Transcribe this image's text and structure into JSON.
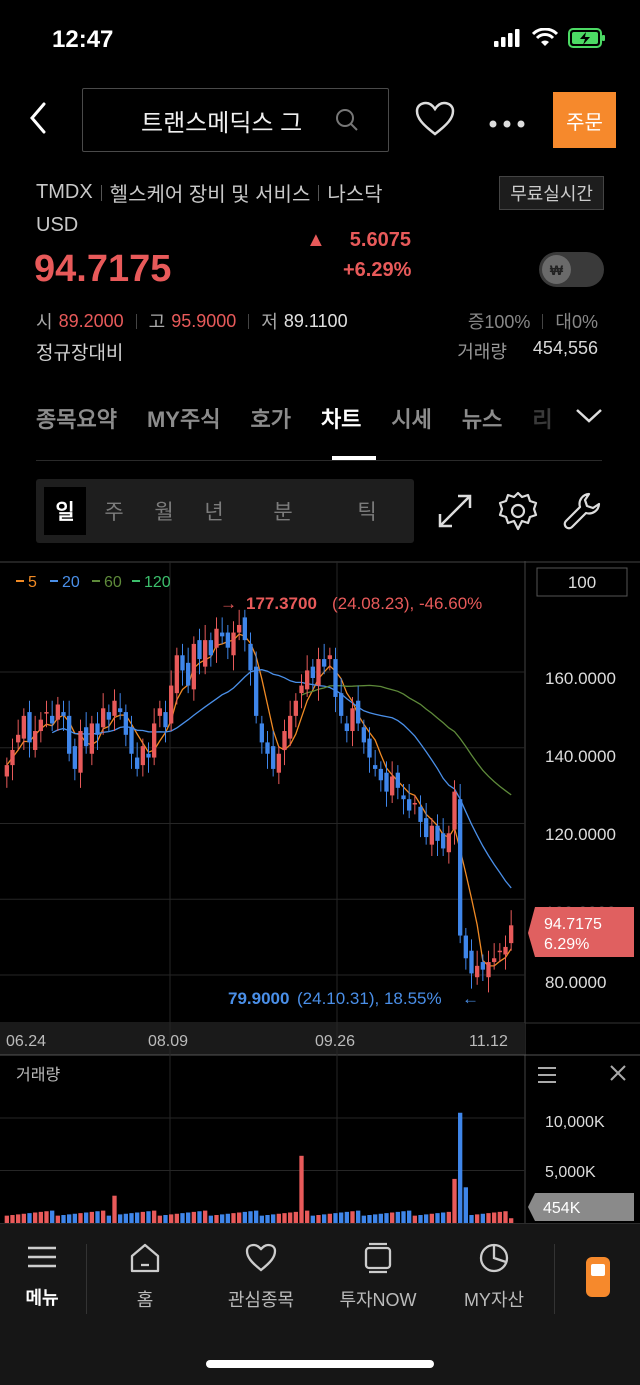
{
  "status_bar": {
    "time": "12:47"
  },
  "header": {
    "search_text": "트랜스메딕스 그",
    "order_label": "주문"
  },
  "stock": {
    "ticker": "TMDX",
    "sector": "헬스케어 장비 및 서비스",
    "market": "나스닥",
    "realtime_badge": "무료실시간",
    "currency": "USD",
    "price": "94.7175",
    "change": "5.6075",
    "change_pct": "+6.29%",
    "won_symbol": "₩",
    "open_label": "시",
    "open": "89.2000",
    "high_label": "고",
    "high": "95.9000",
    "low_label": "저",
    "low": "89.1100",
    "vol_rate": "증100%",
    "prev_rate": "대0%",
    "base_label": "정규장대비",
    "volume_label": "거래량",
    "volume": "454,556"
  },
  "tabs": [
    "종목요약",
    "MY주식",
    "호가",
    "차트",
    "시세",
    "뉴스",
    "리"
  ],
  "active_tab": "차트",
  "periods": [
    "일",
    "주",
    "월",
    "년",
    "분",
    "틱"
  ],
  "chart": {
    "zoom_box": "100",
    "ma_legend": [
      {
        "label": "5",
        "color": "#f08a24"
      },
      {
        "label": "20",
        "color": "#4a8fe8"
      },
      {
        "label": "60",
        "color": "#5e8a3a"
      },
      {
        "label": "120",
        "color": "#3cbf6c"
      }
    ],
    "high_annotation": {
      "value": "177.3700",
      "detail": "(24.08.23), -46.60%"
    },
    "low_annotation": {
      "value": "79.9000",
      "detail": "(24.10.31), 18.55%"
    },
    "y_axis": [
      "160.0000",
      "140.0000",
      "120.0000",
      "100.0000",
      "80.0000"
    ],
    "x_axis": [
      "06.24",
      "08.09",
      "09.26",
      "11.12"
    ],
    "current_tag": {
      "price": "94.7175",
      "pct": "6.29%"
    },
    "up_color": "#e85a5a",
    "down_color": "#3f86ea"
  },
  "volume_panel": {
    "title": "거래량",
    "y_axis": [
      "10,000K",
      "5,000K"
    ],
    "current_tag": "454K"
  },
  "bottom_nav": [
    "메뉴",
    "홈",
    "관심종목",
    "투자NOW",
    "MY자산"
  ],
  "chart_data": {
    "type": "candlestick",
    "title": "",
    "x_ticks": [
      "06.24",
      "08.09",
      "09.26",
      "11.12"
    ],
    "ylim": [
      75,
      185
    ],
    "y_ticks": [
      80,
      100,
      120,
      140,
      160
    ],
    "closes": [
      137,
      141,
      145,
      150,
      143,
      146,
      149,
      151,
      148,
      153,
      150,
      140,
      136,
      146,
      142,
      148,
      145,
      152,
      149,
      154,
      151,
      145,
      140,
      136,
      142,
      139,
      148,
      152,
      147,
      158,
      166,
      162,
      158,
      169,
      165,
      170,
      166,
      173,
      171,
      168,
      172,
      174,
      170,
      162,
      150,
      143,
      140,
      136,
      140,
      146,
      150,
      154,
      158,
      162,
      160,
      165,
      163,
      166,
      155,
      150,
      146,
      152,
      148,
      143,
      139,
      136,
      133,
      130,
      134,
      131,
      128,
      125,
      127,
      122,
      118,
      121,
      117,
      115,
      119,
      130,
      92,
      86,
      82,
      84,
      83,
      85,
      86,
      88,
      89,
      94.7
    ],
    "ma_series": [
      "5",
      "20",
      "60",
      "120"
    ],
    "volume": {
      "ylim": [
        0,
        14000
      ],
      "unit": "K",
      "y_ticks": [
        5000,
        10000
      ],
      "last": 454
    }
  }
}
